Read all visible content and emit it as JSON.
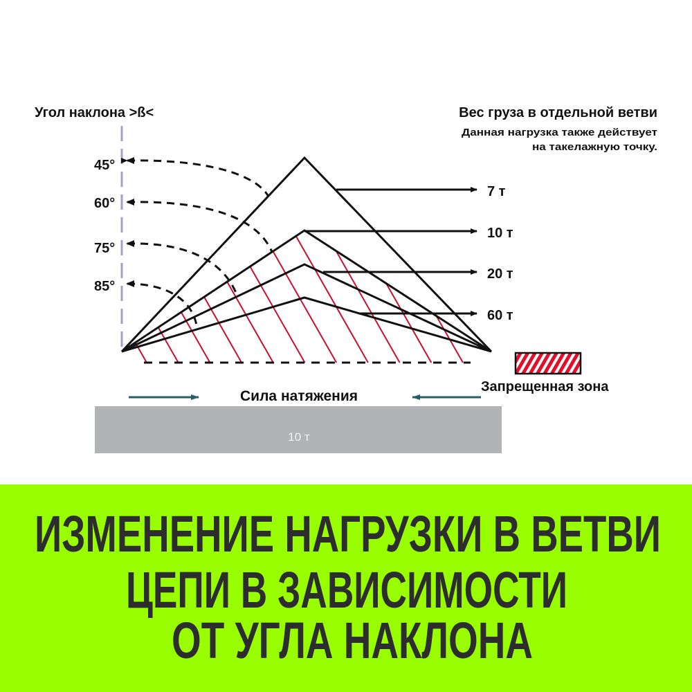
{
  "left_heading": "Угол наклона >ß<",
  "right_heading": "Вес груза в отдельной ветви",
  "right_note": [
    "Данная нагрузка также действует",
    "на такелажную точку."
  ],
  "angles": [
    "45°",
    "60°",
    "75°",
    "85°"
  ],
  "branch_loads": [
    "7 т",
    "10 т",
    "20 т",
    "60 т"
  ],
  "legend": {
    "label": "Запрещенная зона"
  },
  "tension_label": "Сила натяжения",
  "load_box_label": "10 т",
  "banner": {
    "lines": [
      "ИЗМЕНЕНИЕ НАГРУЗКИ В ВЕТВИ",
      "ЦЕПИ В ЗАВИСИМОСТИ",
      "ОТ УГЛА НАКЛОНА"
    ]
  },
  "colors": {
    "banner_bg": "#99ff00",
    "banner_text": "#2d2d2d",
    "forbidden_hatch": "#c8102e",
    "axis": "#a79ec4",
    "tension_arrow": "#245f66",
    "load_box": "#b2b3b5"
  }
}
